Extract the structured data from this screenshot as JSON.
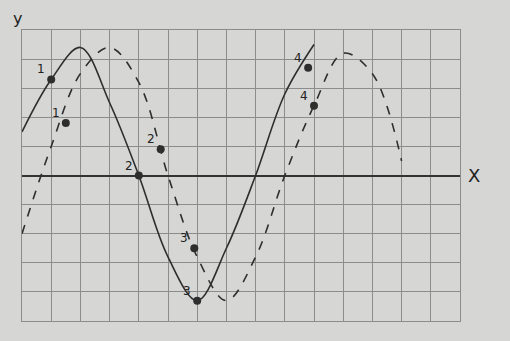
{
  "chart_data": {
    "type": "line",
    "x_label": "X",
    "y_label": "y",
    "xlim": [
      0,
      15
    ],
    "ylim": [
      -5,
      5
    ],
    "xticks": [
      0,
      1,
      2,
      3,
      4,
      5,
      6,
      7,
      8,
      9,
      10,
      11,
      12,
      13,
      14,
      15
    ],
    "yticks": [
      -5,
      -4,
      -3,
      -2,
      -1,
      0,
      1,
      2,
      3,
      4,
      5
    ],
    "grid": true,
    "tick_labels": false,
    "series": [
      {
        "color": "#2e2e2e",
        "line_style": "solid",
        "marker": "circle",
        "x": [
          0,
          1,
          2,
          3,
          4,
          5,
          6,
          7,
          8,
          9,
          10
        ],
        "values": [
          1.5,
          3.3,
          4.4,
          2.5,
          0,
          -2.8,
          -4.3,
          -2.5,
          0,
          2.8,
          4.5
        ],
        "points": [
          {
            "x": 1,
            "y": 3.3,
            "label": "1"
          },
          {
            "x": 4,
            "y": 0,
            "label": "2"
          },
          {
            "x": 6,
            "y": -4.3,
            "label": "3"
          },
          {
            "x": 9.8,
            "y": 3.7,
            "label": "4"
          }
        ]
      },
      {
        "color": "#2e2e2e",
        "line_style": "dashed",
        "marker": "circle",
        "x": [
          0,
          1,
          2,
          3,
          4,
          5,
          6,
          7,
          8,
          9,
          10,
          11,
          12,
          13
        ],
        "values": [
          -2,
          1.0,
          3.5,
          4.4,
          3.2,
          0,
          -2.8,
          -4.3,
          -2.8,
          0,
          2.4,
          4.2,
          3.5,
          0.5
        ],
        "points": [
          {
            "x": 1.5,
            "y": 1.8,
            "label": "1"
          },
          {
            "x": 4.75,
            "y": 0.9,
            "label": "2"
          },
          {
            "x": 5.9,
            "y": -2.5,
            "label": "3"
          },
          {
            "x": 10,
            "y": 2.4,
            "label": "4"
          }
        ]
      }
    ]
  }
}
